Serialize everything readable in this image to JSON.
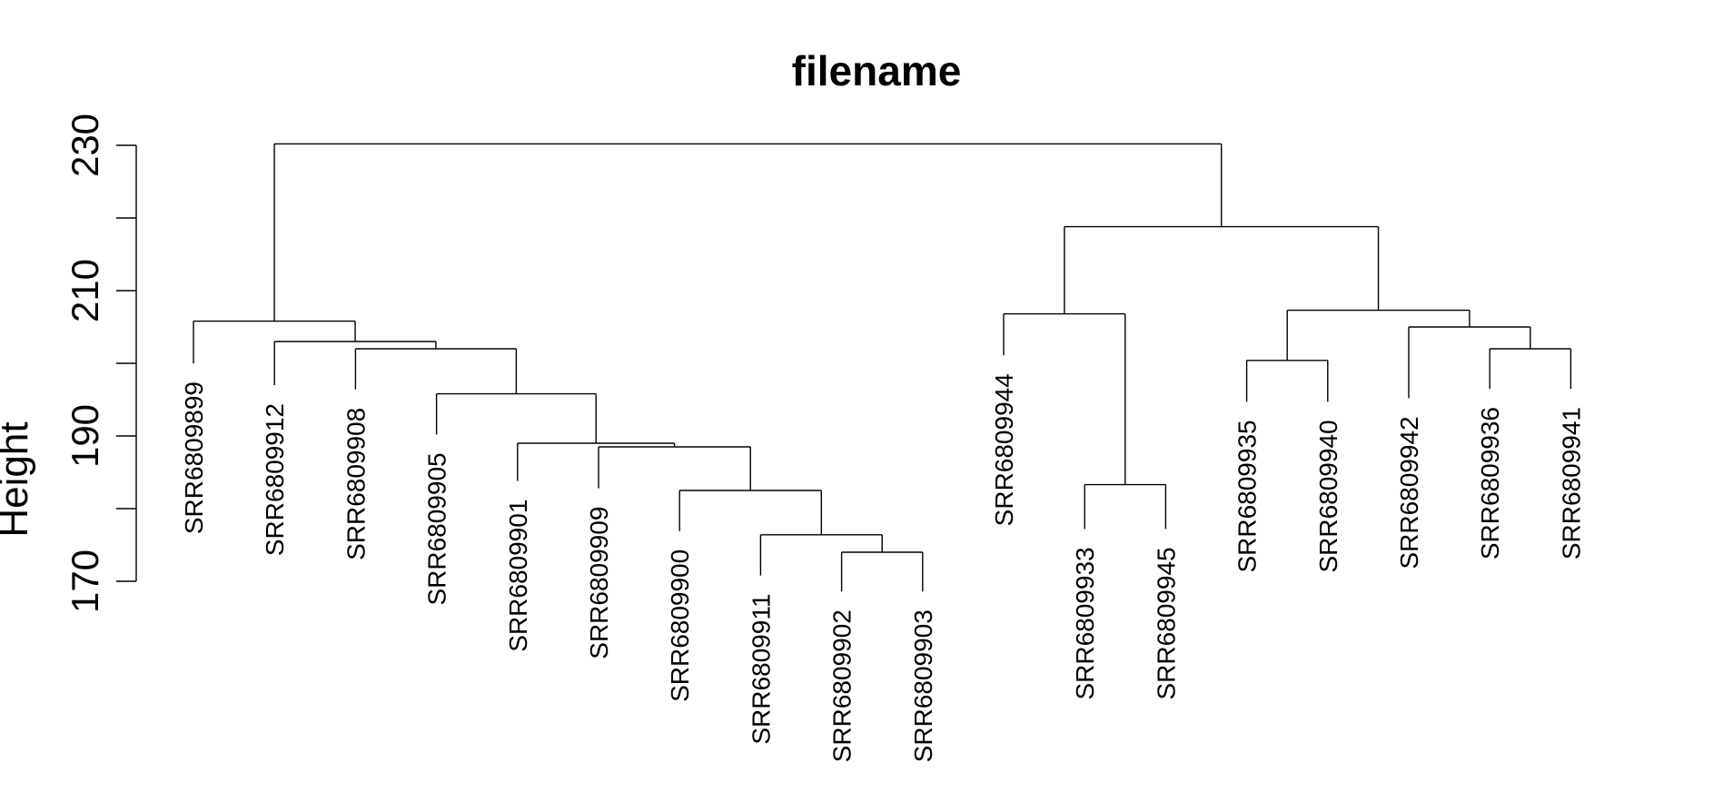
{
  "chart_data": {
    "type": "dendrogram",
    "title": "filename",
    "ylabel": "Height",
    "ylim": [
      170,
      230
    ],
    "yticks": [
      170,
      180,
      190,
      200,
      210,
      220,
      230
    ],
    "ytick_labels": [
      "170",
      "",
      "190",
      "",
      "210",
      "",
      "230"
    ],
    "leaves": [
      "SRR6809899",
      "SRR6809912",
      "SRR6809908",
      "SRR6809905",
      "SRR6809901",
      "SRR6809909",
      "SRR6809900",
      "SRR6809911",
      "SRR6809902",
      "SRR6809903",
      "SRR6809944",
      "SRR6809933",
      "SRR6809945",
      "SRR6809935",
      "SRR6809940",
      "SRR6809942",
      "SRR6809936",
      "SRR6809941"
    ],
    "merges": [
      {
        "left": "SRR6809902",
        "right": "SRR6809903",
        "height": 174.0
      },
      {
        "left": "SRR6809911",
        "right": 1,
        "height": 176.4
      },
      {
        "left": "SRR6809900",
        "right": 2,
        "height": 182.5
      },
      {
        "left": "SRR6809909",
        "right": 3,
        "height": 188.5
      },
      {
        "left": "SRR6809901",
        "right": 4,
        "height": 189.0
      },
      {
        "left": "SRR6809905",
        "right": 5,
        "height": 195.8
      },
      {
        "left": "SRR6809908",
        "right": 6,
        "height": 202.0
      },
      {
        "left": "SRR6809912",
        "right": 7,
        "height": 203.0
      },
      {
        "left": "SRR6809899",
        "right": 8,
        "height": 205.8
      },
      {
        "left": "SRR6809933",
        "right": "SRR6809945",
        "height": 183.3
      },
      {
        "left": "SRR6809944",
        "right": 10,
        "height": 206.8
      },
      {
        "left": "SRR6809935",
        "right": "SRR6809940",
        "height": 200.4
      },
      {
        "left": "SRR6809936",
        "right": "SRR6809941",
        "height": 202.0
      },
      {
        "left": "SRR6809942",
        "right": 13,
        "height": 205.0
      },
      {
        "left": 12,
        "right": 14,
        "height": 207.3
      },
      {
        "left": 11,
        "right": 15,
        "height": 218.8
      },
      {
        "left": 9,
        "right": 16,
        "height": 230.2
      }
    ],
    "leaf_heights": {
      "SRR6809899": 200.0,
      "SRR6809912": 197.0,
      "SRR6809908": 196.4,
      "SRR6809905": 190.2,
      "SRR6809901": 183.8,
      "SRR6809909": 182.8,
      "SRR6809900": 176.9,
      "SRR6809911": 170.8,
      "SRR6809902": 168.6,
      "SRR6809903": 168.6,
      "SRR6809944": 201.1,
      "SRR6809933": 177.2,
      "SRR6809945": 177.2,
      "SRR6809935": 194.7,
      "SRR6809940": 194.7,
      "SRR6809942": 195.2,
      "SRR6809936": 196.5,
      "SRR6809941": 196.5
    }
  }
}
